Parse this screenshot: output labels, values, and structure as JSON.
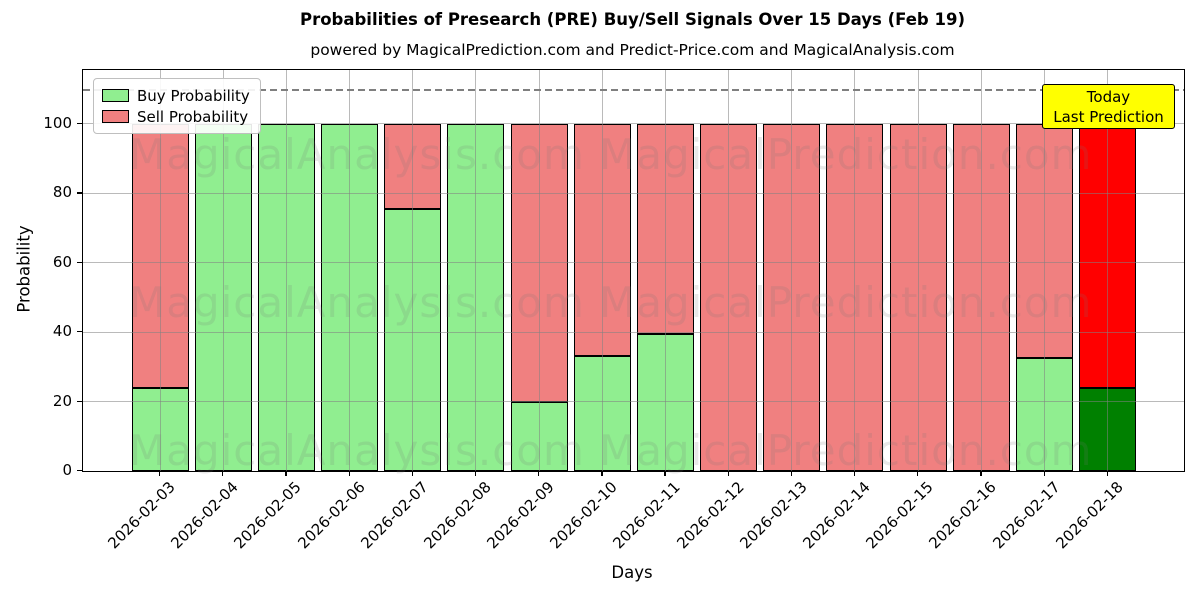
{
  "title": "Probabilities of Presearch (PRE) Buy/Sell Signals Over 15 Days (Feb 19)",
  "subtitle": "powered by MagicalPrediction.com and Predict-Price.com and MagicalAnalysis.com",
  "legend": {
    "items": [
      {
        "label": "Buy Probability",
        "color": "#90EE90"
      },
      {
        "label": "Sell Probability",
        "color": "#F08080"
      }
    ]
  },
  "annotation": {
    "line1": "Today",
    "line2": "Last Prediction",
    "bg_color": "#FFFF00",
    "border_color": "#000000"
  },
  "watermarks": {
    "left_text": "MagicalAnalysis.com",
    "right_text": "MagicalPrediction.com"
  },
  "axes": {
    "ylabel": "Probability",
    "xlabel": "Days",
    "yticks": [
      0,
      20,
      40,
      60,
      80,
      100
    ]
  },
  "chart_data": {
    "type": "bar",
    "stacked": true,
    "title": "Probabilities of Presearch (PRE) Buy/Sell Signals Over 15 Days (Feb 19)",
    "xlabel": "Days",
    "ylabel": "Probability",
    "ylim": [
      0,
      115.5
    ],
    "grid": true,
    "legend_position": "upper-left",
    "dashed_line_y": 110,
    "categories": [
      "2026-02-03",
      "2026-02-04",
      "2026-02-05",
      "2026-02-06",
      "2026-02-07",
      "2026-02-08",
      "2026-02-09",
      "2026-02-10",
      "2026-02-11",
      "2026-02-12",
      "2026-02-13",
      "2026-02-14",
      "2026-02-15",
      "2026-02-16",
      "2026-02-17",
      "2026-02-18"
    ],
    "series": [
      {
        "name": "Buy Probability",
        "values": [
          24,
          100,
          100,
          100,
          75.5,
          100,
          20,
          33,
          39.5,
          0,
          0,
          0,
          0,
          0,
          32.5,
          24
        ]
      },
      {
        "name": "Sell Probability",
        "values": [
          76,
          0,
          0,
          0,
          24.5,
          0,
          80,
          67,
          60.5,
          100,
          100,
          100,
          100,
          100,
          67.5,
          76
        ]
      }
    ],
    "colors": {
      "buy": "#90EE90",
      "sell": "#F08080",
      "buy_highlight": "#008000",
      "sell_highlight": "#FF0000",
      "bar_edge": "#000000"
    },
    "highlight_last_bar": true
  }
}
